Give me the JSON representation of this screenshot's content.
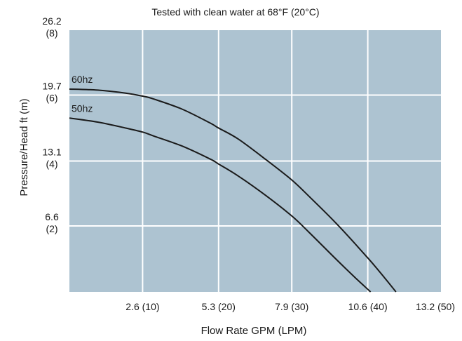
{
  "chart_data": {
    "type": "line",
    "title": "Tested with clean water at 68°F (20°C)",
    "xlabel": "Flow Rate GPM (LPM)",
    "ylabel": "Pressure/Head ft (m)",
    "xlim": [
      0,
      13.2
    ],
    "ylim": [
      0,
      26.2
    ],
    "grid": true,
    "plot_background": "#adc3d1",
    "grid_color": "#ffffff",
    "line_color": "#1a1a1a",
    "x_ticks": [
      {
        "value": 2.6,
        "label": "2.6 (10)"
      },
      {
        "value": 5.3,
        "label": "5.3 (20)"
      },
      {
        "value": 7.9,
        "label": "7.9 (30)"
      },
      {
        "value": 10.6,
        "label": "10.6 (40)"
      },
      {
        "value": 13.2,
        "label": "13.2 (50)"
      }
    ],
    "y_ticks": [
      {
        "value": 26.2,
        "label": "26.2",
        "sublabel": "(8)"
      },
      {
        "value": 19.7,
        "label": "19.7",
        "sublabel": "(6)"
      },
      {
        "value": 13.1,
        "label": "13.1",
        "sublabel": "(4)"
      },
      {
        "value": 6.6,
        "label": "6.6",
        "sublabel": "(2)"
      }
    ],
    "series": [
      {
        "name": "60hz",
        "x": [
          0,
          1.0,
          2.0,
          2.6,
          3.0,
          4.0,
          5.0,
          5.3,
          6.0,
          7.0,
          7.9,
          8.5,
          9.5,
          10.6,
          11.2,
          11.6
        ],
        "y": [
          20.3,
          20.2,
          19.9,
          19.6,
          19.3,
          18.3,
          16.9,
          16.4,
          15.3,
          13.2,
          11.2,
          9.6,
          6.8,
          3.4,
          1.4,
          0
        ]
      },
      {
        "name": "50hz",
        "x": [
          0,
          1.0,
          2.0,
          2.6,
          3.0,
          4.0,
          5.0,
          5.3,
          6.0,
          7.0,
          7.9,
          8.5,
          9.5,
          10.2,
          10.7
        ],
        "y": [
          17.4,
          17.0,
          16.4,
          16.0,
          15.6,
          14.6,
          13.3,
          12.8,
          11.6,
          9.6,
          7.6,
          6.0,
          3.2,
          1.3,
          0
        ]
      }
    ]
  }
}
